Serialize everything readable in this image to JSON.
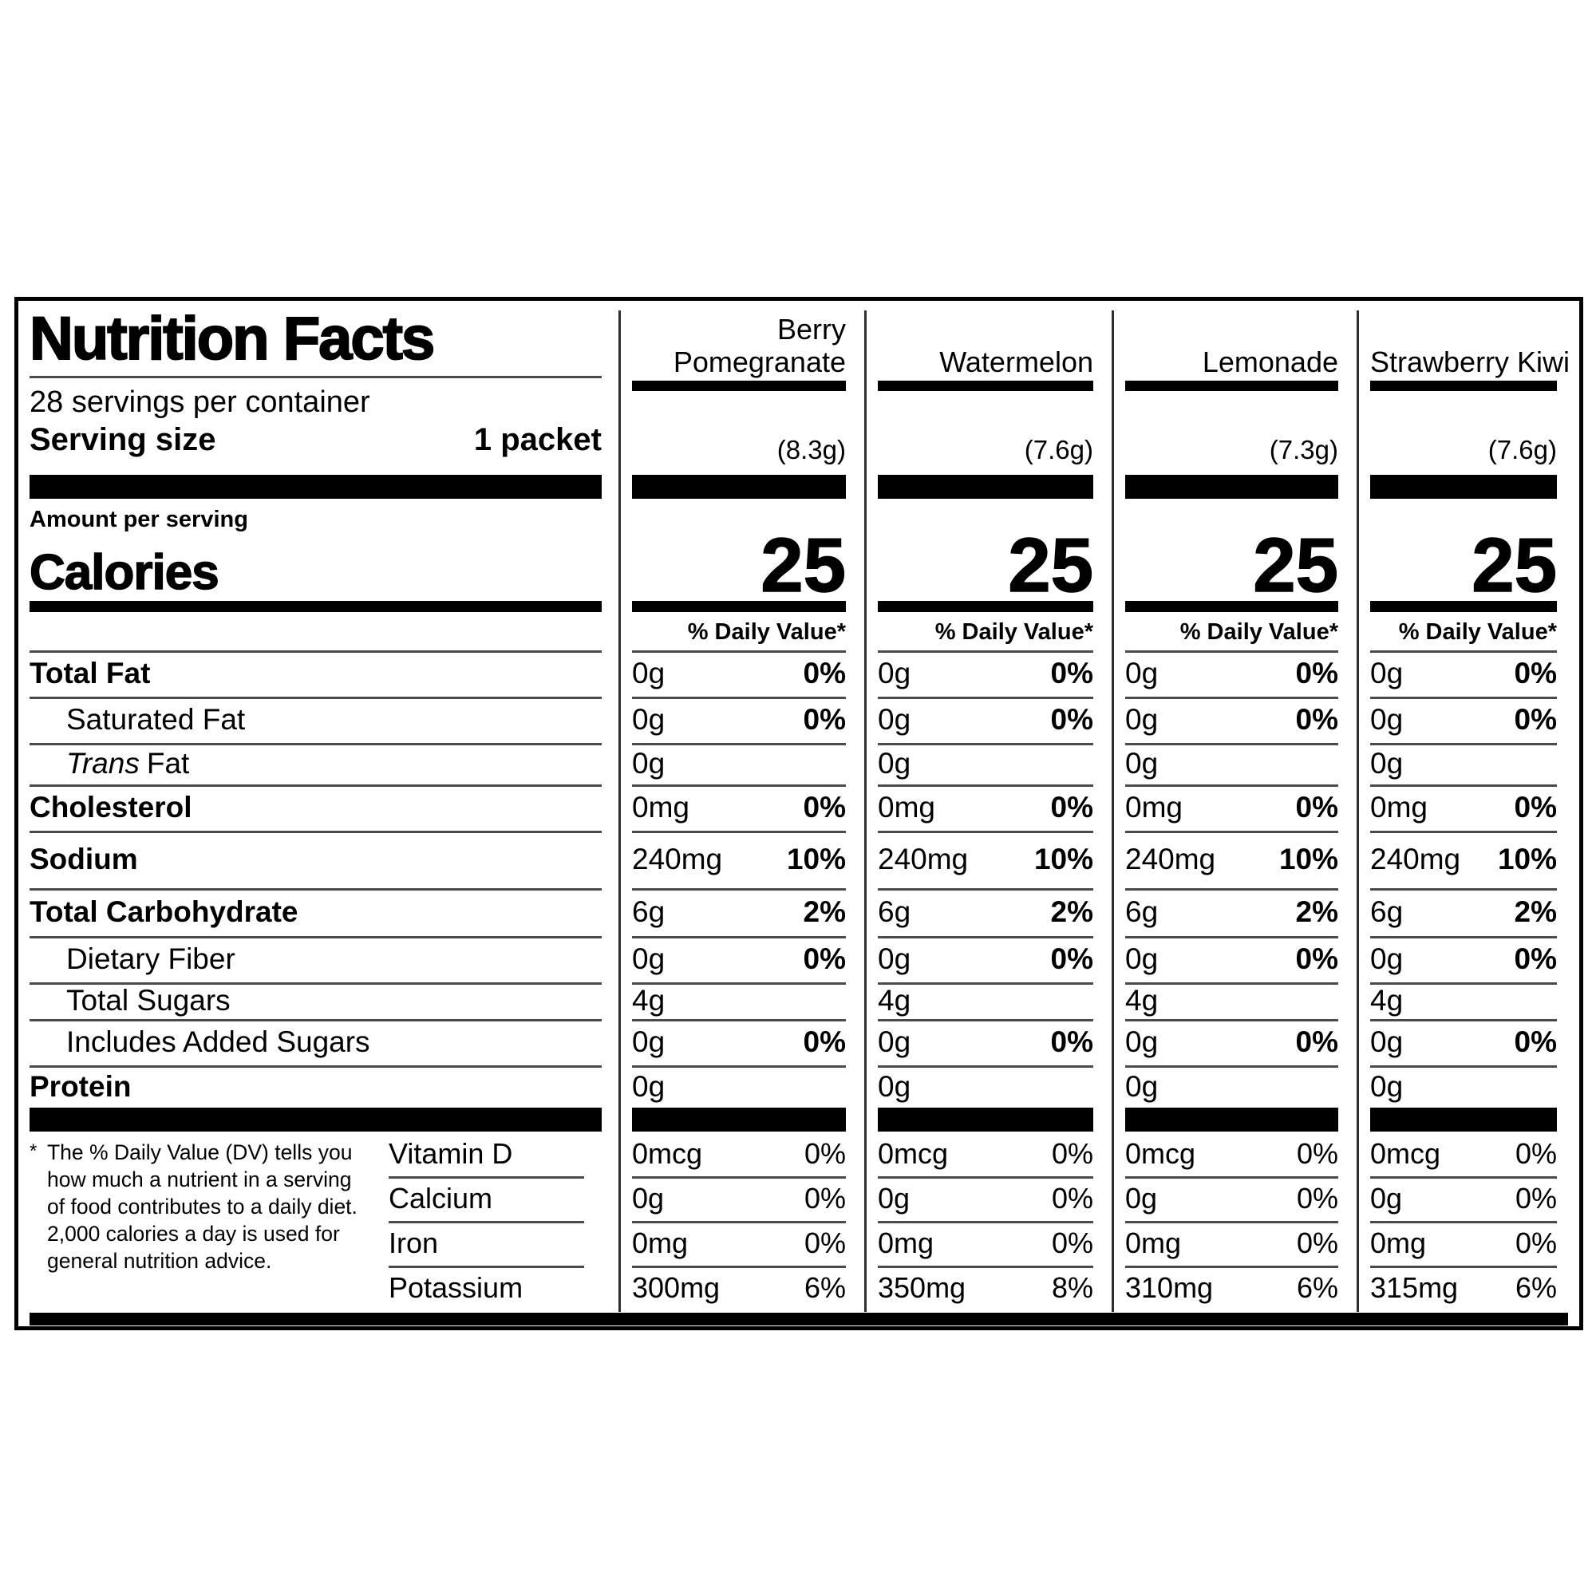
{
  "label": {
    "title": "Nutrition Facts",
    "servings_per_container": "28 servings per container",
    "serving_size": {
      "label": "Serving size",
      "value": "1 packet"
    },
    "amount_per_serving": "Amount per serving",
    "calories_label": "Calories",
    "daily_value_header": "% Daily Value*",
    "flavors": [
      {
        "name": "Berry\nPomegranate",
        "serving_weight": "(8.3g)",
        "calories": "25"
      },
      {
        "name": "Watermelon",
        "serving_weight": "(7.6g)",
        "calories": "25"
      },
      {
        "name": "Lemonade",
        "serving_weight": "(7.3g)",
        "calories": "25"
      },
      {
        "name": "Strawberry Kiwi",
        "serving_weight": "(7.6g)",
        "calories": "25"
      }
    ],
    "nutrients": [
      {
        "name": "Total Fat",
        "bold": true,
        "indent": false,
        "values": [
          {
            "amount": "0g",
            "dv": "0%"
          },
          {
            "amount": "0g",
            "dv": "0%"
          },
          {
            "amount": "0g",
            "dv": "0%"
          },
          {
            "amount": "0g",
            "dv": "0%"
          }
        ]
      },
      {
        "name": "Saturated Fat",
        "bold": false,
        "indent": true,
        "values": [
          {
            "amount": "0g",
            "dv": "0%"
          },
          {
            "amount": "0g",
            "dv": "0%"
          },
          {
            "amount": "0g",
            "dv": "0%"
          },
          {
            "amount": "0g",
            "dv": "0%"
          }
        ]
      },
      {
        "name": "Fat",
        "name_italic": "Trans",
        "bold": false,
        "indent": true,
        "values": [
          {
            "amount": "0g"
          },
          {
            "amount": "0g"
          },
          {
            "amount": "0g"
          },
          {
            "amount": "0g"
          }
        ]
      },
      {
        "name": "Cholesterol",
        "bold": true,
        "indent": false,
        "values": [
          {
            "amount": "0mg",
            "dv": "0%"
          },
          {
            "amount": "0mg",
            "dv": "0%"
          },
          {
            "amount": "0mg",
            "dv": "0%"
          },
          {
            "amount": "0mg",
            "dv": "0%"
          }
        ]
      },
      {
        "name": "Sodium",
        "bold": true,
        "indent": false,
        "values": [
          {
            "amount": "240mg",
            "dv": "10%"
          },
          {
            "amount": "240mg",
            "dv": "10%"
          },
          {
            "amount": "240mg",
            "dv": "10%"
          },
          {
            "amount": "240mg",
            "dv": "10%"
          }
        ]
      },
      {
        "name": "Total Carbohydrate",
        "bold": true,
        "indent": false,
        "values": [
          {
            "amount": "6g",
            "dv": "2%"
          },
          {
            "amount": "6g",
            "dv": "2%"
          },
          {
            "amount": "6g",
            "dv": "2%"
          },
          {
            "amount": "6g",
            "dv": "2%"
          }
        ]
      },
      {
        "name": "Dietary Fiber",
        "bold": false,
        "indent": true,
        "values": [
          {
            "amount": "0g",
            "dv": "0%"
          },
          {
            "amount": "0g",
            "dv": "0%"
          },
          {
            "amount": "0g",
            "dv": "0%"
          },
          {
            "amount": "0g",
            "dv": "0%"
          }
        ]
      },
      {
        "name": "Total Sugars",
        "bold": false,
        "indent": true,
        "values": [
          {
            "amount": "4g"
          },
          {
            "amount": "4g"
          },
          {
            "amount": "4g"
          },
          {
            "amount": "4g"
          }
        ]
      },
      {
        "name": "Includes Added Sugars",
        "bold": false,
        "indent": true,
        "values": [
          {
            "amount": "0g",
            "dv": "0%"
          },
          {
            "amount": "0g",
            "dv": "0%"
          },
          {
            "amount": "0g",
            "dv": "0%"
          },
          {
            "amount": "0g",
            "dv": "0%"
          }
        ]
      },
      {
        "name": "Protein",
        "bold": true,
        "indent": false,
        "values": [
          {
            "amount": "0g"
          },
          {
            "amount": "0g"
          },
          {
            "amount": "0g"
          },
          {
            "amount": "0g"
          }
        ]
      }
    ],
    "vitamins": [
      {
        "name": "Vitamin D",
        "values": [
          {
            "amount": "0mcg",
            "dv": "0%"
          },
          {
            "amount": "0mcg",
            "dv": "0%"
          },
          {
            "amount": "0mcg",
            "dv": "0%"
          },
          {
            "amount": "0mcg",
            "dv": "0%"
          }
        ]
      },
      {
        "name": "Calcium",
        "values": [
          {
            "amount": "0g",
            "dv": "0%"
          },
          {
            "amount": "0g",
            "dv": "0%"
          },
          {
            "amount": "0g",
            "dv": "0%"
          },
          {
            "amount": "0g",
            "dv": "0%"
          }
        ]
      },
      {
        "name": "Iron",
        "values": [
          {
            "amount": "0mg",
            "dv": "0%"
          },
          {
            "amount": "0mg",
            "dv": "0%"
          },
          {
            "amount": "0mg",
            "dv": "0%"
          },
          {
            "amount": "0mg",
            "dv": "0%"
          }
        ]
      },
      {
        "name": "Potassium",
        "values": [
          {
            "amount": "300mg",
            "dv": "6%"
          },
          {
            "amount": "350mg",
            "dv": "8%"
          },
          {
            "amount": "310mg",
            "dv": "6%"
          },
          {
            "amount": "315mg",
            "dv": "6%"
          }
        ]
      }
    ],
    "footnote_marker": "*",
    "footnote": "The % Daily Value (DV) tells you how much a nutrient in a serving of food contributes to a daily diet. 2,000 calories a day is used for general nutrition advice."
  },
  "colors": {
    "text": "#000000",
    "bars": "#000000",
    "rules": "#4a4a4a",
    "dividers": "#2e2e2e",
    "background": "#ffffff"
  }
}
